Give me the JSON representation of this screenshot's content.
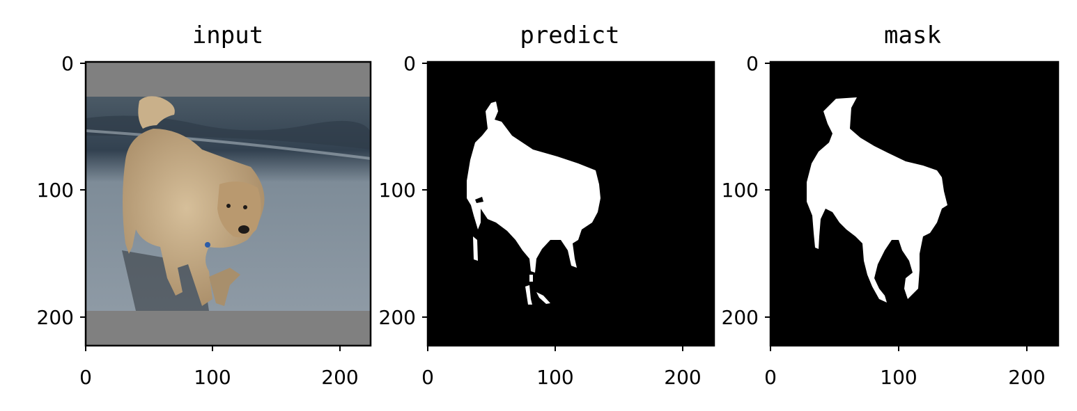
{
  "chart_data": [
    {
      "type": "image",
      "title": "input",
      "xlim": [
        0,
        224
      ],
      "ylim": [
        224,
        0
      ],
      "xticks": [
        0,
        100,
        200
      ],
      "yticks": [
        0,
        100,
        200
      ],
      "content": "photo of a golden dog walking on a wet beach, letterboxed with gray bars"
    },
    {
      "type": "image",
      "title": "predict",
      "xlim": [
        0,
        224
      ],
      "ylim": [
        224,
        0
      ],
      "xticks": [
        0,
        100,
        200
      ],
      "yticks": [
        0,
        100,
        200
      ],
      "content": "binary segmentation mask: white dog silhouette on black"
    },
    {
      "type": "image",
      "title": "mask",
      "xlim": [
        0,
        224
      ],
      "ylim": [
        224,
        0
      ],
      "xticks": [
        0,
        100,
        200
      ],
      "yticks": [
        0,
        100,
        200
      ],
      "content": "ground truth mask: white dog silhouette on black"
    }
  ],
  "colors": {
    "pad": "#808080",
    "water": "#3e4d5a",
    "sand": "#8b98a4",
    "dog": "#c9ad86",
    "mask_bg": "#000000",
    "mask_fg": "#ffffff"
  }
}
